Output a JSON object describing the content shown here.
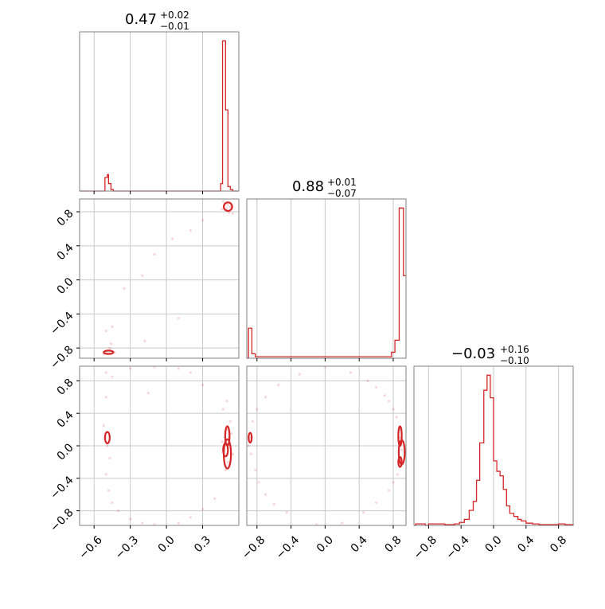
{
  "colors": {
    "accent": "#d62728",
    "grid": "#c8c8c8",
    "frame": "#808080"
  },
  "chart_data": [
    {
      "type": "histogram",
      "panel": "p1-marginal",
      "title": {
        "value": "0.47",
        "plus": "+0.02",
        "minus": "−0.01"
      },
      "xlim": [
        -0.72,
        0.6
      ],
      "ylim": [
        0,
        1.06
      ],
      "bins": [
        [
          -0.72,
          0
        ],
        [
          -0.52,
          0
        ],
        [
          -0.51,
          0.09
        ],
        [
          -0.49,
          0.11
        ],
        [
          -0.48,
          0.05
        ],
        [
          -0.46,
          0.01
        ],
        [
          -0.44,
          0
        ],
        [
          0.44,
          0
        ],
        [
          0.45,
          0.05
        ],
        [
          0.465,
          1.0
        ],
        [
          0.49,
          0.54
        ],
        [
          0.51,
          0.03
        ],
        [
          0.53,
          0.01
        ],
        [
          0.55,
          0
        ]
      ],
      "xgrid": [
        -0.6,
        -0.3,
        0.0,
        0.3
      ],
      "grid": true
    },
    {
      "type": "contour-scatter",
      "panel": "p2-vs-p1",
      "xlim": [
        -0.72,
        0.6
      ],
      "ylim": [
        -0.92,
        0.95
      ],
      "xgrid": [
        -0.6,
        -0.3,
        0.0,
        0.3
      ],
      "ygrid": [
        -0.8,
        -0.4,
        0.0,
        0.4,
        0.8
      ],
      "yticks": [
        "−0.8",
        "−0.4",
        "0.0",
        "0.4",
        "0.8"
      ],
      "points": [
        [
          0.51,
          0.88
        ],
        [
          0.49,
          0.9
        ],
        [
          0.53,
          0.86
        ],
        [
          0.5,
          0.84
        ],
        [
          0.52,
          0.79
        ],
        [
          0.47,
          0.92
        ],
        [
          0.54,
          0.85
        ],
        [
          0.48,
          0.87
        ],
        [
          0.55,
          0.78
        ],
        [
          0.46,
          0.83
        ],
        [
          0.3,
          0.7
        ],
        [
          0.2,
          0.58
        ],
        [
          0.05,
          0.48
        ],
        [
          -0.1,
          0.3
        ],
        [
          -0.2,
          0.05
        ],
        [
          -0.35,
          -0.1
        ],
        [
          -0.45,
          -0.55
        ],
        [
          -0.5,
          -0.84
        ],
        [
          -0.48,
          -0.86
        ],
        [
          -0.47,
          -0.8
        ],
        [
          -0.52,
          -0.87
        ],
        [
          -0.46,
          -0.75
        ],
        [
          -0.43,
          -0.85
        ],
        [
          -0.5,
          -0.6
        ],
        [
          0.1,
          -0.45
        ],
        [
          -0.18,
          -0.72
        ]
      ],
      "contours": [
        {
          "cx": 0.51,
          "cy": 0.86,
          "rx": 0.035,
          "ry": 0.05
        },
        {
          "cx": -0.48,
          "cy": -0.85,
          "rx": 0.04,
          "ry": 0.02
        }
      ],
      "grid": true
    },
    {
      "type": "histogram",
      "panel": "p2-marginal",
      "title": {
        "value": "0.88",
        "plus": "+0.01",
        "minus": "−0.07"
      },
      "xlim": [
        -0.92,
        0.95
      ],
      "ylim": [
        0,
        1.06
      ],
      "bins": [
        [
          -0.92,
          0
        ],
        [
          -0.9,
          0.2
        ],
        [
          -0.86,
          0.03
        ],
        [
          -0.82,
          0.01
        ],
        [
          0.72,
          0.01
        ],
        [
          0.78,
          0.04
        ],
        [
          0.82,
          0.12
        ],
        [
          0.87,
          1.0
        ],
        [
          0.92,
          0.55
        ],
        [
          0.95,
          0.55
        ]
      ],
      "xgrid": [
        -0.8,
        -0.4,
        0.0,
        0.4,
        0.8
      ],
      "grid": true
    },
    {
      "type": "contour-scatter",
      "panel": "p3-vs-p1",
      "xlim": [
        -0.72,
        0.6
      ],
      "ylim": [
        -0.98,
        0.98
      ],
      "xgrid": [
        -0.6,
        -0.3,
        0.0,
        0.3
      ],
      "ygrid": [
        -0.8,
        -0.4,
        0.0,
        0.4,
        0.8
      ],
      "xticks": [
        "−0.6",
        "−0.3",
        "0.0",
        "0.3"
      ],
      "yticks": [
        "−0.8",
        "−0.4",
        "0.0",
        "0.4",
        "0.8"
      ],
      "points": [
        [
          0.5,
          0.2
        ],
        [
          0.52,
          0.1
        ],
        [
          0.48,
          -0.05
        ],
        [
          0.51,
          -0.2
        ],
        [
          0.53,
          0.3
        ],
        [
          0.49,
          -0.3
        ],
        [
          0.47,
          0.45
        ],
        [
          0.55,
          -0.1
        ],
        [
          0.46,
          0.05
        ],
        [
          0.5,
          0.55
        ],
        [
          0.54,
          0.15
        ],
        [
          -0.5,
          0.1
        ],
        [
          -0.49,
          0.0
        ],
        [
          -0.52,
          0.25
        ],
        [
          -0.47,
          -0.15
        ],
        [
          -0.5,
          -0.35
        ],
        [
          -0.48,
          -0.55
        ],
        [
          -0.45,
          -0.7
        ],
        [
          -0.5,
          0.6
        ],
        [
          -0.4,
          -0.8
        ],
        [
          -0.3,
          -0.9
        ],
        [
          -0.2,
          -0.95
        ],
        [
          -0.1,
          -0.97
        ],
        [
          0.1,
          -0.95
        ],
        [
          0.2,
          -0.88
        ],
        [
          0.3,
          -0.78
        ],
        [
          0.4,
          -0.65
        ],
        [
          -0.45,
          0.85
        ],
        [
          -0.3,
          0.95
        ],
        [
          -0.1,
          0.97
        ],
        [
          0.1,
          0.95
        ],
        [
          0.2,
          0.9
        ],
        [
          0.3,
          0.75
        ],
        [
          -0.5,
          0.9
        ],
        [
          -0.15,
          0.65
        ]
      ],
      "contours": [
        {
          "cx": 0.505,
          "cy": 0.12,
          "rx": 0.018,
          "ry": 0.12
        },
        {
          "cx": 0.505,
          "cy": -0.1,
          "rx": 0.03,
          "ry": 0.18
        },
        {
          "cx": 0.49,
          "cy": -0.05,
          "rx": 0.02,
          "ry": 0.08
        },
        {
          "cx": -0.49,
          "cy": 0.1,
          "rx": 0.02,
          "ry": 0.07
        }
      ],
      "grid": true
    },
    {
      "type": "contour-scatter",
      "panel": "p3-vs-p2",
      "xlim": [
        -0.92,
        0.95
      ],
      "ylim": [
        -0.98,
        0.98
      ],
      "xgrid": [
        -0.8,
        -0.4,
        0.0,
        0.4,
        0.8
      ],
      "ygrid": [
        -0.8,
        -0.4,
        0.0,
        0.4,
        0.8
      ],
      "xticks": [
        "−0.8",
        "−0.4",
        "0.0",
        "0.4",
        "0.8"
      ],
      "points": [
        [
          0.87,
          0.2
        ],
        [
          0.88,
          0.1
        ],
        [
          0.9,
          -0.05
        ],
        [
          0.86,
          -0.2
        ],
        [
          0.92,
          0.05
        ],
        [
          0.89,
          -0.15
        ],
        [
          0.84,
          0.35
        ],
        [
          0.8,
          0.45
        ],
        [
          0.75,
          0.55
        ],
        [
          0.7,
          0.62
        ],
        [
          0.6,
          0.72
        ],
        [
          0.5,
          0.8
        ],
        [
          0.85,
          -0.35
        ],
        [
          0.8,
          -0.45
        ],
        [
          0.75,
          -0.55
        ],
        [
          0.6,
          -0.7
        ],
        [
          0.45,
          -0.82
        ],
        [
          0.2,
          -0.95
        ],
        [
          -0.1,
          -0.97
        ],
        [
          -0.88,
          0.1
        ],
        [
          -0.9,
          0.0
        ],
        [
          -0.87,
          -0.1
        ],
        [
          -0.85,
          0.3
        ],
        [
          -0.82,
          -0.3
        ],
        [
          -0.78,
          -0.45
        ],
        [
          -0.7,
          -0.6
        ],
        [
          -0.6,
          -0.72
        ],
        [
          -0.45,
          -0.82
        ],
        [
          -0.8,
          0.45
        ],
        [
          -0.7,
          0.6
        ],
        [
          -0.55,
          0.75
        ],
        [
          -0.3,
          0.88
        ],
        [
          0.0,
          0.97
        ],
        [
          0.3,
          0.9
        ]
      ],
      "contours": [
        {
          "cx": 0.88,
          "cy": 0.12,
          "rx": 0.02,
          "ry": 0.12
        },
        {
          "cx": 0.9,
          "cy": -0.08,
          "rx": 0.035,
          "ry": 0.15
        },
        {
          "cx": 0.88,
          "cy": -0.2,
          "rx": 0.02,
          "ry": 0.06
        },
        {
          "cx": -0.88,
          "cy": 0.1,
          "rx": 0.018,
          "ry": 0.06
        }
      ],
      "grid": true
    },
    {
      "type": "histogram",
      "panel": "p3-marginal",
      "title": {
        "value": "−0.03",
        "plus": "+0.16",
        "minus": "−0.10"
      },
      "xlim": [
        -0.98,
        0.98
      ],
      "ylim": [
        0,
        1.06
      ],
      "xgrid": [
        -0.8,
        -0.4,
        0.0,
        0.4,
        0.8
      ],
      "xticks": [
        "−0.8",
        "−0.4",
        "0.0",
        "0.4",
        "0.8"
      ],
      "bins": [
        [
          -0.98,
          0
        ],
        [
          -0.96,
          0.01
        ],
        [
          -0.84,
          0
        ],
        [
          -0.8,
          0.01
        ],
        [
          -0.6,
          0.005
        ],
        [
          -0.48,
          0.01
        ],
        [
          -0.42,
          0.02
        ],
        [
          -0.36,
          0.04
        ],
        [
          -0.3,
          0.1
        ],
        [
          -0.25,
          0.16
        ],
        [
          -0.21,
          0.3
        ],
        [
          -0.17,
          0.55
        ],
        [
          -0.12,
          0.9
        ],
        [
          -0.08,
          1.0
        ],
        [
          -0.04,
          0.85
        ],
        [
          0.0,
          0.43
        ],
        [
          0.04,
          0.36
        ],
        [
          0.08,
          0.33
        ],
        [
          0.12,
          0.24
        ],
        [
          0.16,
          0.13
        ],
        [
          0.2,
          0.08
        ],
        [
          0.25,
          0.06
        ],
        [
          0.3,
          0.04
        ],
        [
          0.34,
          0.03
        ],
        [
          0.4,
          0.015
        ],
        [
          0.48,
          0.01
        ],
        [
          0.56,
          0.005
        ],
        [
          0.8,
          0.01
        ],
        [
          0.88,
          0.005
        ],
        [
          0.98,
          0
        ]
      ],
      "grid": true
    }
  ]
}
